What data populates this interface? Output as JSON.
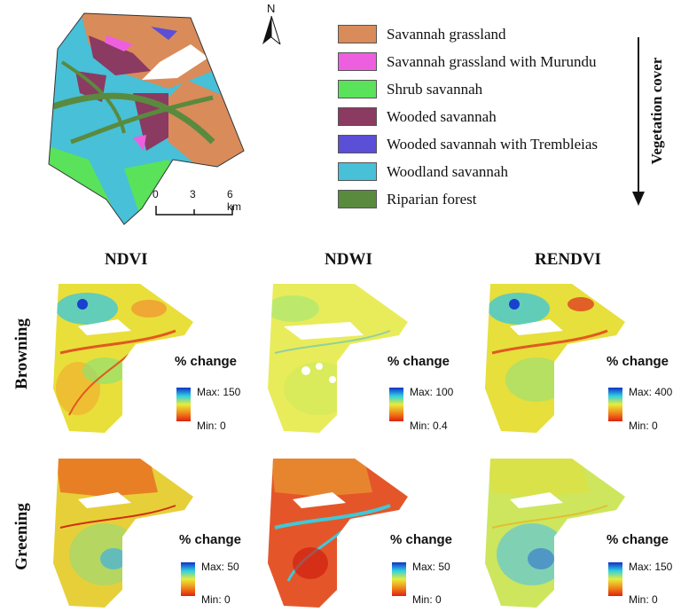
{
  "north_label": "N",
  "scale_bar": {
    "labels": [
      "0",
      "3",
      "6 km"
    ]
  },
  "legend": {
    "items": [
      {
        "label": "Savannah grassland",
        "color": "#d98b5a"
      },
      {
        "label": "Savannah grassland with Murundu",
        "color": "#ee5fe0"
      },
      {
        "label": "Shrub savannah",
        "color": "#5ae25a"
      },
      {
        "label": "Wooded savannah",
        "color": "#8b3a62"
      },
      {
        "label": "Wooded savannah with Trembleias",
        "color": "#5a4fd6"
      },
      {
        "label": "Woodland savannah",
        "color": "#47c0d8"
      },
      {
        "label": "Riparian forest",
        "color": "#5a8a3e"
      }
    ],
    "arrow_label": "Vegetation cover"
  },
  "columns": [
    "NDVI",
    "NDWI",
    "RENDVI"
  ],
  "rows": [
    "Browning",
    "Greening"
  ],
  "change_label": "% change",
  "panels": [
    {
      "row": "Browning",
      "index": "NDVI",
      "max": "Max: 150",
      "min": "Min: 0",
      "base_color": "#e9df3a"
    },
    {
      "row": "Browning",
      "index": "NDWI",
      "max": "Max: 100",
      "min": "Min: 0.4",
      "base_color": "#e8ec5a"
    },
    {
      "row": "Browning",
      "index": "RENDVI",
      "max": "Max: 400",
      "min": "Min: 0",
      "base_color": "#e6df3c"
    },
    {
      "row": "Greening",
      "index": "NDVI",
      "max": "Max: 50",
      "min": "Min: 0",
      "base_color": "#e7cf3a"
    },
    {
      "row": "Greening",
      "index": "NDWI",
      "max": "Max: 50",
      "min": "Min: 0",
      "base_color": "#e4562a"
    },
    {
      "row": "Greening",
      "index": "RENDVI",
      "max": "Max: 150",
      "min": "Min: 0",
      "base_color": "#cde65e"
    }
  ]
}
